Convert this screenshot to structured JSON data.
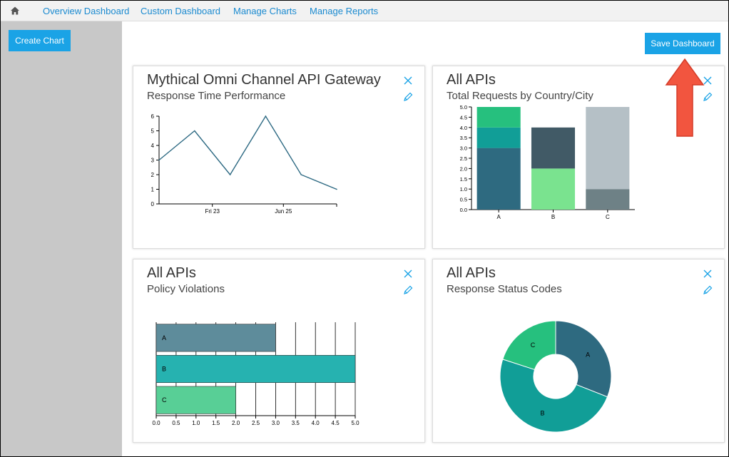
{
  "nav": {
    "links": [
      "Overview Dashboard",
      "Custom Dashboard",
      "Manage Charts",
      "Manage Reports"
    ]
  },
  "sidebar": {
    "create_chart_label": "Create Chart"
  },
  "toolbar": {
    "save_dashboard_label": "Save Dashboard"
  },
  "colors": {
    "accent": "#1aa3e6",
    "nav_link": "#1a8ad0",
    "sidebar_bg": "#c8c8c8",
    "line": "#2e6a83",
    "arrow": "#f2553f"
  },
  "cards": [
    {
      "title": "Mythical Omni Channel API Gateway",
      "subtitle": "Response Time Performance"
    },
    {
      "title": "All APIs",
      "subtitle": "Total Requests by Country/City"
    },
    {
      "title": "All APIs",
      "subtitle": "Policy Violations"
    },
    {
      "title": "All APIs",
      "subtitle": "Response Status Codes"
    }
  ],
  "chart_data": [
    {
      "type": "line",
      "title": "Response Time Performance",
      "x": [
        0,
        1,
        2,
        3,
        4,
        5
      ],
      "values": [
        3,
        5,
        2,
        6,
        2,
        1
      ],
      "ylim": [
        0,
        6
      ],
      "yticks": [
        "0",
        "1",
        "2",
        "3",
        "4",
        "5",
        "6"
      ],
      "xtick_labels": [
        {
          "at": 1.5,
          "label": "Fri 23"
        },
        {
          "at": 3.5,
          "label": "Jun 25"
        }
      ],
      "color": "#2e6a83"
    },
    {
      "type": "bar",
      "title": "Total Requests by Country/City",
      "categories": [
        "A",
        "B",
        "C"
      ],
      "ylim": [
        0,
        5
      ],
      "yticks": [
        "0.0",
        "0.5",
        "1.0",
        "1.5",
        "2.0",
        "2.5",
        "3.0",
        "3.5",
        "4.0",
        "4.5",
        "5.0"
      ],
      "stacked": [
        [
          {
            "value": 3,
            "color": "#2e6a80"
          },
          {
            "value": 1,
            "color": "#119e97"
          },
          {
            "value": 1,
            "color": "#26c07e"
          }
        ],
        [
          {
            "value": 2,
            "color": "#7ae38f"
          },
          {
            "value": 2,
            "color": "#415a66"
          }
        ],
        [
          {
            "value": 1,
            "color": "#6e8186"
          },
          {
            "value": 4,
            "color": "#b5c0c6"
          }
        ]
      ]
    },
    {
      "type": "bar",
      "orientation": "horizontal",
      "title": "Policy Violations",
      "categories": [
        "A",
        "B",
        "C"
      ],
      "values": [
        3,
        5,
        2
      ],
      "colors": [
        "#5e8c9b",
        "#26b2b0",
        "#58cf96"
      ],
      "xlim": [
        0,
        5
      ],
      "xticks": [
        "0.0",
        "0.5",
        "1.0",
        "1.5",
        "2.0",
        "2.5",
        "3.0",
        "3.5",
        "4.0",
        "4.5",
        "5.0"
      ]
    },
    {
      "type": "pie",
      "donut": true,
      "title": "Response Status Codes",
      "labels": [
        "A",
        "B",
        "C"
      ],
      "values": [
        31,
        49,
        20
      ],
      "colors": [
        "#2e6a80",
        "#119e97",
        "#26c07e"
      ]
    }
  ]
}
